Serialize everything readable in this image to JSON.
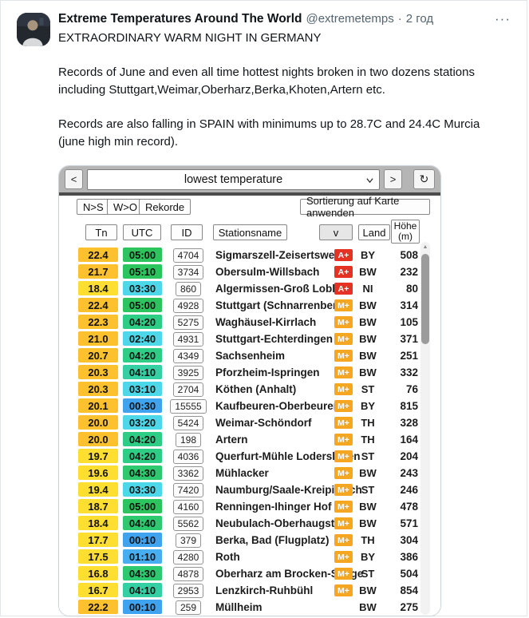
{
  "tweet": {
    "author": "Extreme Temperatures Around The World",
    "handle": "@extremetemps",
    "separator": "·",
    "time": "2 год",
    "more": "···",
    "headline": "EXTRAORDINARY WARM NIGHT IN GERMANY",
    "paragraph_1": "Records of June and even all time hottest nights broken in two dozens stations including Stuttgart,Weimar,Oberharz,Berka,Khoten,Artern etc.",
    "paragraph_2": "Records are also falling in SPAIN with minimums up to 28.7C and 24.4C Murcia (june high min record)."
  },
  "weather_app": {
    "toolbar": {
      "prev": "<",
      "dropdown_value": "lowest temperature",
      "next": ">",
      "refresh": "↻"
    },
    "sort": {
      "ns": "N>S",
      "wo": "W>O",
      "rekorde": "Rekorde",
      "apply": "Sortierung auf Karte anwenden"
    },
    "columns": {
      "tn": "Tn",
      "utc": "UTC",
      "id": "ID",
      "station": "Stationsname",
      "filter": "v",
      "land": "Land",
      "hoehe_line1": "Höhe",
      "hoehe_line2": "(m)"
    },
    "colors": {
      "tn_orange": "#fcc12c",
      "tn_yellow": "#ffde32",
      "utc_green": "#2cc45c",
      "utc_green_teal": "#2dc96e",
      "utc_teal": "#2ecd85",
      "utc_teal_cyan": "#34cfa2",
      "utc_cyan": "#4cd8e8",
      "utc_light_blue": "#47aef2",
      "utc_blue": "#3fa3f0",
      "badge_red": "#e63222",
      "badge_orange": "#f6a722"
    },
    "rows": [
      {
        "tn": "22.4",
        "utc": "05:00",
        "id": "4704",
        "station": "Sigmarszell-Zeisertsweiler",
        "badge": "A+",
        "land": "BY",
        "hoehe": "508",
        "tn_color": "#fcc12c",
        "utc_color": "#2cc45c",
        "badge_color": "#e63222"
      },
      {
        "tn": "21.7",
        "utc": "05:10",
        "id": "3734",
        "station": "Obersulm-Willsbach",
        "badge": "A+",
        "land": "BW",
        "hoehe": "232",
        "tn_color": "#fcc12c",
        "utc_color": "#2cc45c",
        "badge_color": "#e63222"
      },
      {
        "tn": "18.4",
        "utc": "03:30",
        "id": "860",
        "station": "Algermissen-Groß Lobke",
        "badge": "A+",
        "land": "NI",
        "hoehe": "80",
        "tn_color": "#ffde32",
        "utc_color": "#4cd8e8",
        "badge_color": "#e63222"
      },
      {
        "tn": "22.4",
        "utc": "05:00",
        "id": "4928",
        "station": "Stuttgart (Schnarrenberg)",
        "badge": "M+",
        "land": "BW",
        "hoehe": "314",
        "tn_color": "#fcc12c",
        "utc_color": "#2cc45c",
        "badge_color": "#f6a722"
      },
      {
        "tn": "22.3",
        "utc": "04:20",
        "id": "5275",
        "station": "Waghäusel-Kirrlach",
        "badge": "M+",
        "land": "BW",
        "hoehe": "105",
        "tn_color": "#fcc12c",
        "utc_color": "#2ecd85",
        "badge_color": "#f6a722"
      },
      {
        "tn": "21.0",
        "utc": "02:40",
        "id": "4931",
        "station": "Stuttgart-Echterdingen",
        "badge": "M+",
        "land": "BW",
        "hoehe": "371",
        "tn_color": "#fcc12c",
        "utc_color": "#4cd8e8",
        "badge_color": "#f6a722"
      },
      {
        "tn": "20.7",
        "utc": "04:20",
        "id": "4349",
        "station": "Sachsenheim",
        "badge": "M+",
        "land": "BW",
        "hoehe": "251",
        "tn_color": "#fcc12c",
        "utc_color": "#2ecd85",
        "badge_color": "#f6a722"
      },
      {
        "tn": "20.3",
        "utc": "04:10",
        "id": "3925",
        "station": "Pforzheim-Ispringen",
        "badge": "M+",
        "land": "BW",
        "hoehe": "332",
        "tn_color": "#fcc12c",
        "utc_color": "#34cfa2",
        "badge_color": "#f6a722"
      },
      {
        "tn": "20.3",
        "utc": "03:10",
        "id": "2704",
        "station": "Köthen (Anhalt)",
        "badge": "M+",
        "land": "ST",
        "hoehe": "76",
        "tn_color": "#fcc12c",
        "utc_color": "#4cd8e8",
        "badge_color": "#f6a722"
      },
      {
        "tn": "20.1",
        "utc": "00:30",
        "id": "15555",
        "station": "Kaufbeuren-Oberbeuren",
        "badge": "M+",
        "land": "BY",
        "hoehe": "815",
        "tn_color": "#fcc12c",
        "utc_color": "#3fa3f0",
        "badge_color": "#f6a722"
      },
      {
        "tn": "20.0",
        "utc": "03:20",
        "id": "5424",
        "station": "Weimar-Schöndorf",
        "badge": "M+",
        "land": "TH",
        "hoehe": "328",
        "tn_color": "#fcc12c",
        "utc_color": "#4cd8e8",
        "badge_color": "#f6a722"
      },
      {
        "tn": "20.0",
        "utc": "04:20",
        "id": "198",
        "station": "Artern",
        "badge": "M+",
        "land": "TH",
        "hoehe": "164",
        "tn_color": "#fcc12c",
        "utc_color": "#2ecd85",
        "badge_color": "#f6a722"
      },
      {
        "tn": "19.7",
        "utc": "04:20",
        "id": "4036",
        "station": "Querfurt-Mühle Lodersleben",
        "badge": "M+",
        "land": "ST",
        "hoehe": "204",
        "tn_color": "#ffde32",
        "utc_color": "#2ecd85",
        "badge_color": "#f6a722"
      },
      {
        "tn": "19.6",
        "utc": "04:30",
        "id": "3362",
        "station": "Mühlacker",
        "badge": "M+",
        "land": "BW",
        "hoehe": "243",
        "tn_color": "#ffde32",
        "utc_color": "#2dc96e",
        "badge_color": "#f6a722"
      },
      {
        "tn": "19.4",
        "utc": "03:30",
        "id": "7420",
        "station": "Naumburg/Saale-Kreipitzsch",
        "badge": "M+",
        "land": "ST",
        "hoehe": "246",
        "tn_color": "#ffde32",
        "utc_color": "#4cd8e8",
        "badge_color": "#f6a722"
      },
      {
        "tn": "18.7",
        "utc": "05:00",
        "id": "4160",
        "station": "Renningen-Ihinger Hof",
        "badge": "M+",
        "land": "BW",
        "hoehe": "478",
        "tn_color": "#ffde32",
        "utc_color": "#2cc45c",
        "badge_color": "#f6a722"
      },
      {
        "tn": "18.4",
        "utc": "04:40",
        "id": "5562",
        "station": "Neubulach-Oberhaugstett",
        "badge": "M+",
        "land": "BW",
        "hoehe": "571",
        "tn_color": "#ffde32",
        "utc_color": "#2dc96e",
        "badge_color": "#f6a722"
      },
      {
        "tn": "17.7",
        "utc": "00:10",
        "id": "379",
        "station": "Berka, Bad (Flugplatz)",
        "badge": "M+",
        "land": "TH",
        "hoehe": "304",
        "tn_color": "#ffde32",
        "utc_color": "#3fa3f0",
        "badge_color": "#f6a722"
      },
      {
        "tn": "17.5",
        "utc": "01:10",
        "id": "4280",
        "station": "Roth",
        "badge": "M+",
        "land": "BY",
        "hoehe": "386",
        "tn_color": "#ffde32",
        "utc_color": "#47aef2",
        "badge_color": "#f6a722"
      },
      {
        "tn": "16.8",
        "utc": "04:30",
        "id": "4878",
        "station": "Oberharz am Brocken-Stiege",
        "badge": "M+",
        "land": "ST",
        "hoehe": "504",
        "tn_color": "#ffde32",
        "utc_color": "#2dc96e",
        "badge_color": "#f6a722"
      },
      {
        "tn": "16.7",
        "utc": "04:10",
        "id": "2953",
        "station": "Lenzkirch-Ruhbühl",
        "badge": "M+",
        "land": "BW",
        "hoehe": "854",
        "tn_color": "#ffde32",
        "utc_color": "#34cfa2",
        "badge_color": "#f6a722"
      },
      {
        "tn": "22.2",
        "utc": "00:10",
        "id": "259",
        "station": "Müllheim",
        "badge": "",
        "land": "BW",
        "hoehe": "275",
        "tn_color": "#fcc12c",
        "utc_color": "#3fa3f0",
        "badge_color": ""
      }
    ]
  }
}
